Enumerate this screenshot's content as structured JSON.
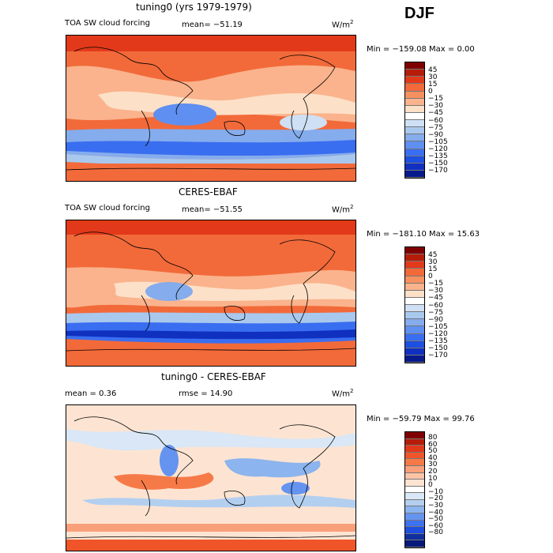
{
  "season": "DJF",
  "panels": [
    {
      "title": "tuning0 (yrs 1979-1979)",
      "left_label": "TOA SW cloud forcing",
      "stat1": "mean= −51.19",
      "stat2": "",
      "units": "W/m",
      "units_sup": "2",
      "minmax": "Min = −159.08 Max =    0.00",
      "colorbar": {
        "colors": [
          "#7f0000",
          "#b51d0a",
          "#e2391a",
          "#f26a3a",
          "#f6915f",
          "#fab38c",
          "#fde0c8",
          "#ffffff",
          "#cfe0f4",
          "#a9c8ee",
          "#85acec",
          "#5f8ff0",
          "#3a6ef0",
          "#1d4fe0",
          "#1030c0",
          "#071a8c"
        ],
        "labels": [
          "45",
          "30",
          "15",
          "0",
          "−15",
          "−30",
          "−45",
          "−60",
          "−75",
          "−90",
          "−105",
          "−120",
          "−135",
          "−150",
          "−170"
        ]
      }
    },
    {
      "title": "CERES-EBAF",
      "left_label": "TOA SW cloud forcing",
      "stat1": "mean= −51.55",
      "stat2": "",
      "units": "W/m",
      "units_sup": "2",
      "minmax": "Min = −181.10 Max =  15.63",
      "colorbar": {
        "colors": [
          "#7f0000",
          "#b51d0a",
          "#e2391a",
          "#f26a3a",
          "#f6915f",
          "#fab38c",
          "#fde0c8",
          "#ffffff",
          "#cfe0f4",
          "#a9c8ee",
          "#85acec",
          "#5f8ff0",
          "#3a6ef0",
          "#1d4fe0",
          "#1030c0",
          "#071a8c"
        ],
        "labels": [
          "45",
          "30",
          "15",
          "0",
          "−15",
          "−30",
          "−45",
          "−60",
          "−75",
          "−90",
          "−105",
          "−120",
          "−135",
          "−150",
          "−170"
        ]
      }
    },
    {
      "title": "tuning0 - CERES-EBAF",
      "left_label": "mean =    0.36",
      "stat1": "",
      "stat2": "rmse =   14.90",
      "units": "W/m",
      "units_sup": "2",
      "minmax": "Min = −59.79 Max =  99.76",
      "colorbar": {
        "colors": [
          "#7f0000",
          "#b51d0a",
          "#e2391a",
          "#f0552a",
          "#f67a48",
          "#f8a07a",
          "#fbc4a6",
          "#fde4d2",
          "#ffffff",
          "#d9e7f6",
          "#b3cff0",
          "#8cb4ee",
          "#6494f0",
          "#3d72f0",
          "#1e4fe0",
          "#10309e",
          "#071a7a"
        ],
        "labels": [
          "80",
          "60",
          "50",
          "40",
          "30",
          "20",
          "10",
          "0",
          "−10",
          "−20",
          "−30",
          "−40",
          "−50",
          "−60",
          "−80"
        ]
      }
    }
  ]
}
